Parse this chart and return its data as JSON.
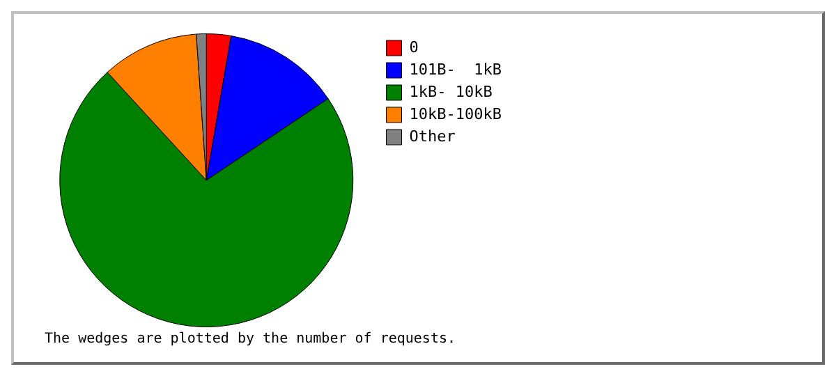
{
  "chart_data": {
    "type": "pie",
    "categories": [
      "0",
      "101B-  1kB",
      "1kB- 10kB",
      "10kB-100kB",
      "Other"
    ],
    "values": [
      2.7,
      12.9,
      72.6,
      10.7,
      1.1
    ],
    "colors": [
      "#ff0000",
      "#0000ff",
      "#008000",
      "#ff8000",
      "#808080"
    ],
    "legend": "top right",
    "annotations": [
      "The wedges are plotted by the number of requests."
    ]
  }
}
